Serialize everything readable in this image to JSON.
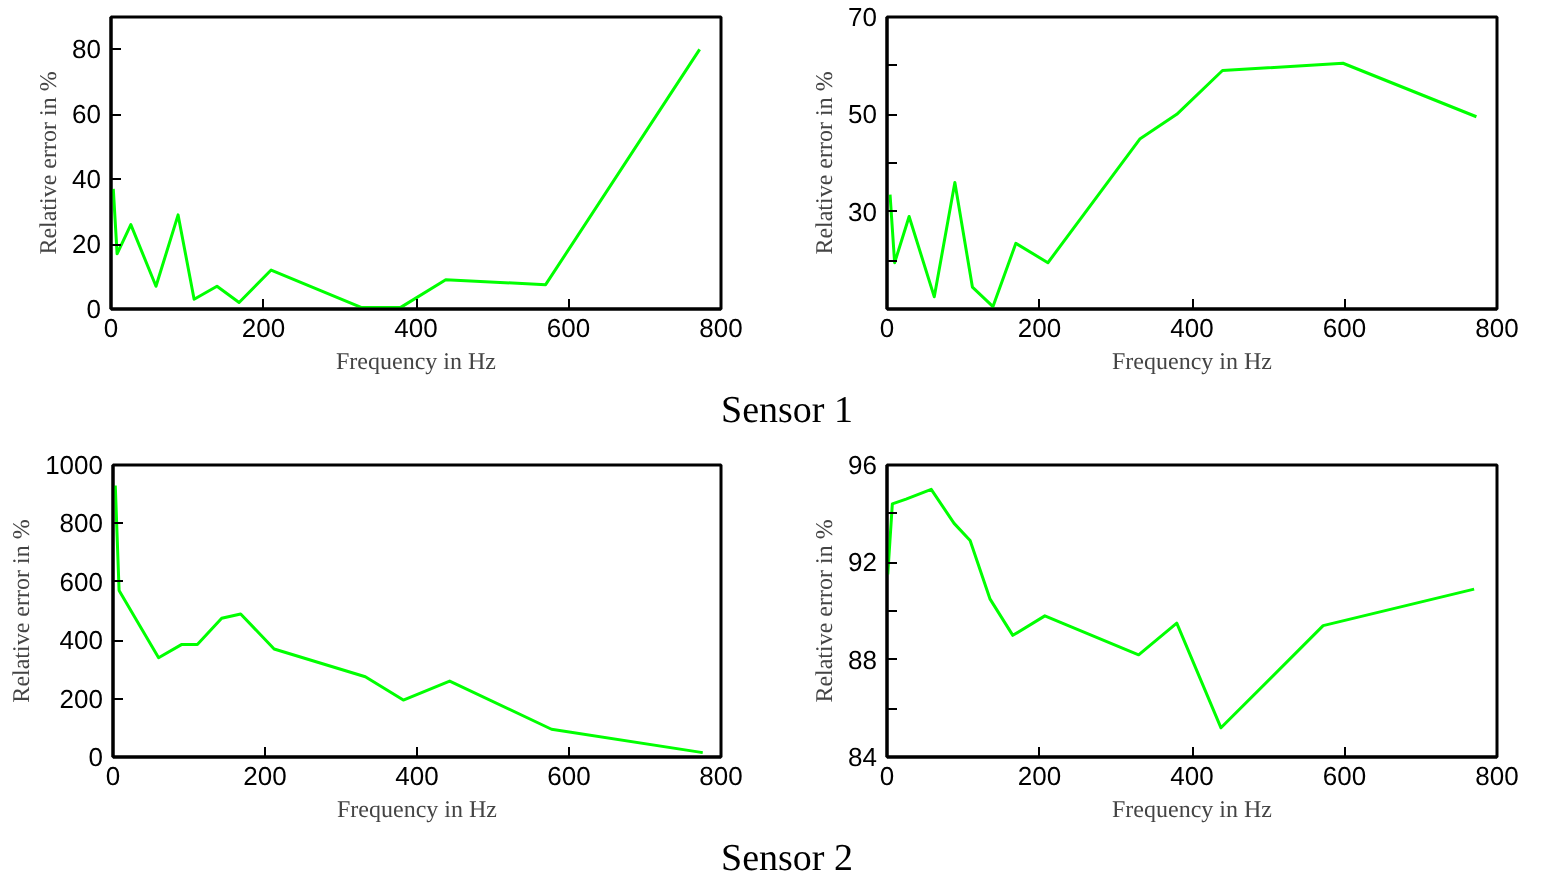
{
  "chart_data": [
    {
      "type": "line",
      "xlabel": "Frequency in Hz",
      "ylabel": "Relative error in %",
      "annotations": [
        "Sensor 1"
      ],
      "grid": false,
      "xlim": [
        0,
        800
      ],
      "xticks": [
        0,
        200,
        400,
        600,
        800
      ],
      "ylim": [
        0,
        90
      ],
      "yticks": [
        0,
        20,
        40,
        60,
        80
      ],
      "series": [
        {
          "color": "#00ff00",
          "x": [
            3,
            8,
            26,
            59,
            88,
            109,
            139,
            168,
            210,
            328,
            380,
            439,
            570,
            772
          ],
          "values": [
            37,
            17,
            26,
            7,
            29,
            3,
            7,
            2,
            12,
            0.5,
            0.5,
            9,
            7.5,
            80
          ]
        }
      ]
    },
    {
      "type": "line",
      "xlabel": "Frequency in Hz",
      "ylabel": "Relative error in %",
      "grid": false,
      "xlim": [
        0,
        800
      ],
      "xticks": [
        0,
        200,
        400,
        600,
        800
      ],
      "ylim": [
        10,
        70
      ],
      "yticks": [
        {
          "value": 20,
          "label": null
        },
        30,
        {
          "value": 40,
          "label": null
        },
        50,
        {
          "value": 60,
          "label": null
        },
        70
      ],
      "series": [
        {
          "color": "#00ff00",
          "x": [
            4,
            10,
            29,
            62,
            89,
            112,
            139,
            169,
            211,
            332,
            380,
            440,
            598,
            773
          ],
          "values": [
            33.5,
            19.5,
            29,
            12.5,
            36,
            14.5,
            10.5,
            23.5,
            19.5,
            45,
            50,
            59,
            60.5,
            49.5
          ]
        }
      ]
    },
    {
      "type": "line",
      "xlabel": "Frequency in Hz",
      "ylabel": "Relative error in %",
      "annotations": [
        "Sensor 2"
      ],
      "grid": false,
      "xlim": [
        0,
        800
      ],
      "xticks": [
        0,
        200,
        400,
        600,
        800
      ],
      "ylim": [
        0,
        1000
      ],
      "yticks": [
        0,
        200,
        400,
        600,
        800,
        1000
      ],
      "series": [
        {
          "color": "#00ff00",
          "x": [
            3,
            8,
            60,
            90,
            111,
            143,
            168,
            212,
            332,
            382,
            443,
            577,
            776
          ],
          "values": [
            930,
            570,
            340,
            385,
            385,
            475,
            490,
            370,
            275,
            195,
            260,
            95,
            15
          ]
        }
      ]
    },
    {
      "type": "line",
      "xlabel": "Frequency in Hz",
      "ylabel": "Relative error in %",
      "grid": false,
      "xlim": [
        0,
        800
      ],
      "xticks": [
        0,
        200,
        400,
        600,
        800
      ],
      "ylim": [
        84,
        96
      ],
      "yticks": [
        84,
        {
          "value": 86,
          "label": null
        },
        88,
        {
          "value": 90,
          "label": null
        },
        92,
        {
          "value": 94,
          "label": null
        },
        96
      ],
      "series": [
        {
          "color": "#00ff00",
          "x": [
            1,
            7,
            25,
            58,
            88,
            109,
            135,
            165,
            207,
            330,
            380,
            438,
            572,
            770
          ],
          "values": [
            91.5,
            94.4,
            94.6,
            95.0,
            93.6,
            92.9,
            90.5,
            89.0,
            89.8,
            88.2,
            89.5,
            85.2,
            89.4,
            90.9
          ]
        }
      ]
    }
  ]
}
